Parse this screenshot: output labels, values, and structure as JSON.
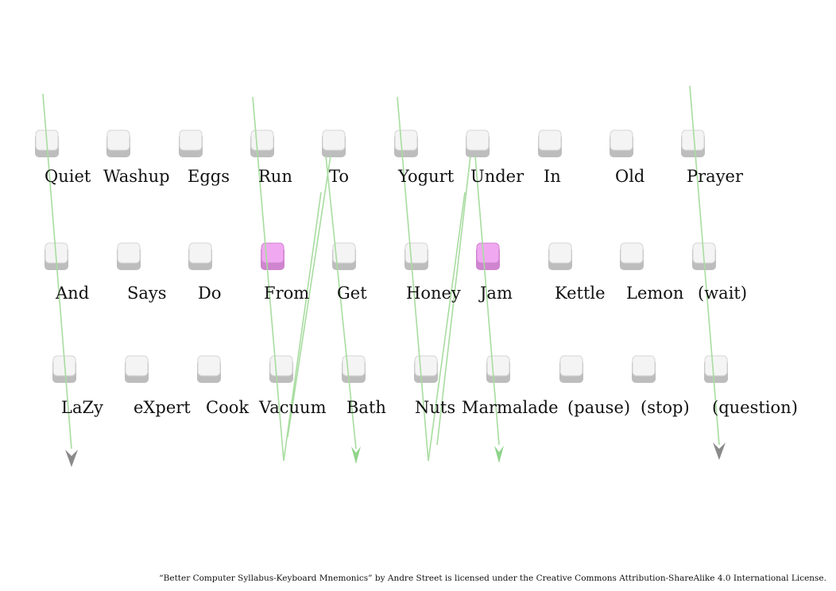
{
  "colors": {
    "key_face": "#f4f4f4",
    "key_base": "#bdbdbd",
    "key_highlight_face": "#f0a8f0",
    "key_highlight_base": "#cf85cf",
    "finger_line": "#a8dca0",
    "arrow_green": "#8fd48a",
    "arrow_gray": "#8a8a8a"
  },
  "rows": [
    {
      "name": "top",
      "keys": [
        {
          "word": "Quiet",
          "highlight": false
        },
        {
          "word": "Washup",
          "highlight": false
        },
        {
          "word": "Eggs",
          "highlight": false
        },
        {
          "word": "Run",
          "highlight": false
        },
        {
          "word": "To",
          "highlight": false
        },
        {
          "word": "Yogurt",
          "highlight": false
        },
        {
          "word": "Under",
          "highlight": false
        },
        {
          "word": "In",
          "highlight": false
        },
        {
          "word": "Old",
          "highlight": false
        },
        {
          "word": "Prayer",
          "highlight": false
        }
      ]
    },
    {
      "name": "home",
      "keys": [
        {
          "word": "And",
          "highlight": false
        },
        {
          "word": "Says",
          "highlight": false
        },
        {
          "word": "Do",
          "highlight": false
        },
        {
          "word": "From",
          "highlight": true
        },
        {
          "word": "Get",
          "highlight": false
        },
        {
          "word": "Honey",
          "highlight": false
        },
        {
          "word": "Jam",
          "highlight": true
        },
        {
          "word": "Kettle",
          "highlight": false
        },
        {
          "word": "Lemon",
          "highlight": false
        },
        {
          "word": "(wait)",
          "highlight": false
        }
      ]
    },
    {
      "name": "bottom",
      "keys": [
        {
          "word": "LaZy",
          "highlight": false
        },
        {
          "word": "eXpert",
          "highlight": false
        },
        {
          "word": "Cook",
          "highlight": false
        },
        {
          "word": "Vacuum",
          "highlight": false
        },
        {
          "word": "Bath",
          "highlight": false
        },
        {
          "word": "Nuts",
          "highlight": false
        },
        {
          "word": "Marmalade",
          "highlight": false
        },
        {
          "word": "(pause)",
          "highlight": false
        },
        {
          "word": "(stop)",
          "highlight": false
        },
        {
          "word": "(question)",
          "highlight": false
        }
      ]
    }
  ],
  "credit": "“Better Computer Syllabus-Keyboard Mnemonics” by Andre Street is licensed under the Creative Commons Attribution-ShareAlike 4.0 International License."
}
